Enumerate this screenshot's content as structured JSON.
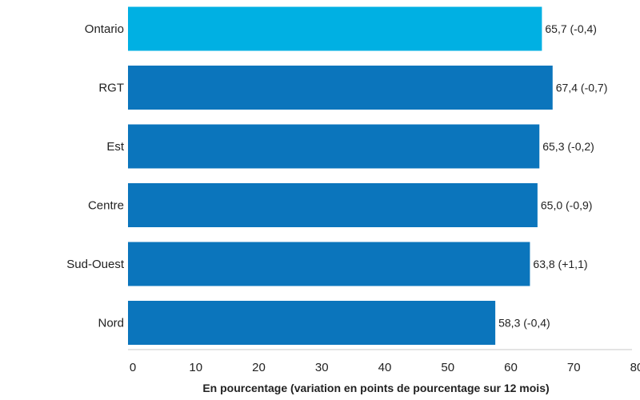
{
  "chart_data": {
    "type": "bar",
    "orientation": "horizontal",
    "xlabel": "En pourcentage (variation en points de pourcentage sur 12 mois)",
    "ylabel": "",
    "title": "",
    "xlim": [
      0,
      80
    ],
    "xticks": [
      0,
      10,
      20,
      30,
      40,
      50,
      60,
      70,
      80
    ],
    "xtick_labels": [
      "0",
      "10",
      "20",
      "30",
      "40",
      "50",
      "60",
      "70",
      "80"
    ],
    "grid": false,
    "legend": "none",
    "categories": [
      "Ontario",
      "RGT",
      "Est",
      "Centre",
      "Sud-Ouest",
      "Nord"
    ],
    "values": [
      65.7,
      67.4,
      65.3,
      65.0,
      63.8,
      58.3
    ],
    "changes": [
      -0.4,
      -0.7,
      -0.2,
      -0.9,
      1.1,
      -0.4
    ],
    "data_labels": [
      "65,7 (-0,4)",
      "67,4 (-0,7)",
      "65,3 (-0,2)",
      "65,0 (-0,9)",
      "63,8 (+1,1)",
      "58,3 (-0,4)"
    ],
    "colors": [
      "#00b0e3",
      "#0b75bc",
      "#0b75bc",
      "#0b75bc",
      "#0b75bc",
      "#0b75bc"
    ],
    "axis_color": "#c8c8c8"
  }
}
